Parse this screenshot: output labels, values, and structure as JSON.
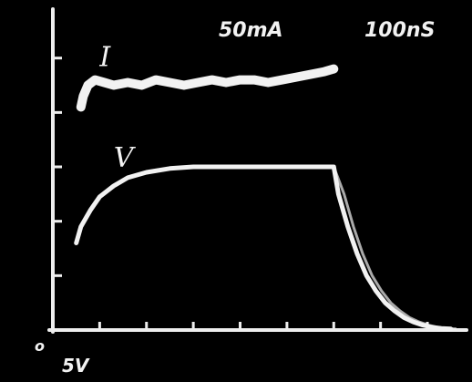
{
  "settings": {
    "current_scale": "50mA",
    "time_scale": "100nS",
    "voltage_scale": "5V",
    "origin_marker": "o"
  },
  "colors": {
    "background": "#000000",
    "trace": "#f2f2f2",
    "axis": "#eeeeee"
  },
  "chart_data": {
    "type": "line",
    "xlabel": "100nS",
    "ylabel": "",
    "xlim": [
      0,
      8.7
    ],
    "ylim": [
      0,
      5.9
    ],
    "x_ticks": [
      0,
      1,
      2,
      3,
      4,
      5,
      6,
      7,
      8
    ],
    "y_ticks": [
      0,
      1,
      2,
      3,
      4,
      5
    ],
    "grid": false,
    "series": [
      {
        "name": "I",
        "label_at": [
          1.0,
          4.85
        ],
        "x": [
          0.6,
          0.65,
          0.75,
          0.9,
          1.1,
          1.3,
          1.6,
          1.9,
          2.2,
          2.5,
          2.8,
          3.1,
          3.4,
          3.7,
          4.0,
          4.3,
          4.6,
          4.9,
          5.2,
          5.5,
          5.8,
          6.0
        ],
        "y": [
          4.1,
          4.3,
          4.5,
          4.6,
          4.55,
          4.5,
          4.55,
          4.5,
          4.6,
          4.55,
          4.5,
          4.55,
          4.6,
          4.55,
          4.6,
          4.6,
          4.55,
          4.6,
          4.65,
          4.7,
          4.75,
          4.8
        ]
      },
      {
        "name": "V",
        "label_at": [
          1.3,
          3.0
        ],
        "x": [
          0.5,
          0.6,
          0.8,
          1.0,
          1.3,
          1.6,
          2.0,
          2.5,
          3.0,
          3.5,
          4.0,
          4.5,
          5.0,
          5.5,
          6.0,
          6.1,
          6.3,
          6.5,
          6.7,
          6.9,
          7.1,
          7.3,
          7.5,
          7.7,
          7.9,
          8.1,
          8.3,
          8.5
        ],
        "y": [
          1.6,
          1.9,
          2.2,
          2.45,
          2.65,
          2.8,
          2.9,
          2.97,
          3.0,
          3.0,
          3.0,
          3.0,
          3.0,
          3.0,
          3.0,
          2.5,
          1.9,
          1.4,
          1.0,
          0.72,
          0.5,
          0.35,
          0.23,
          0.15,
          0.09,
          0.05,
          0.03,
          0.02
        ]
      }
    ]
  }
}
